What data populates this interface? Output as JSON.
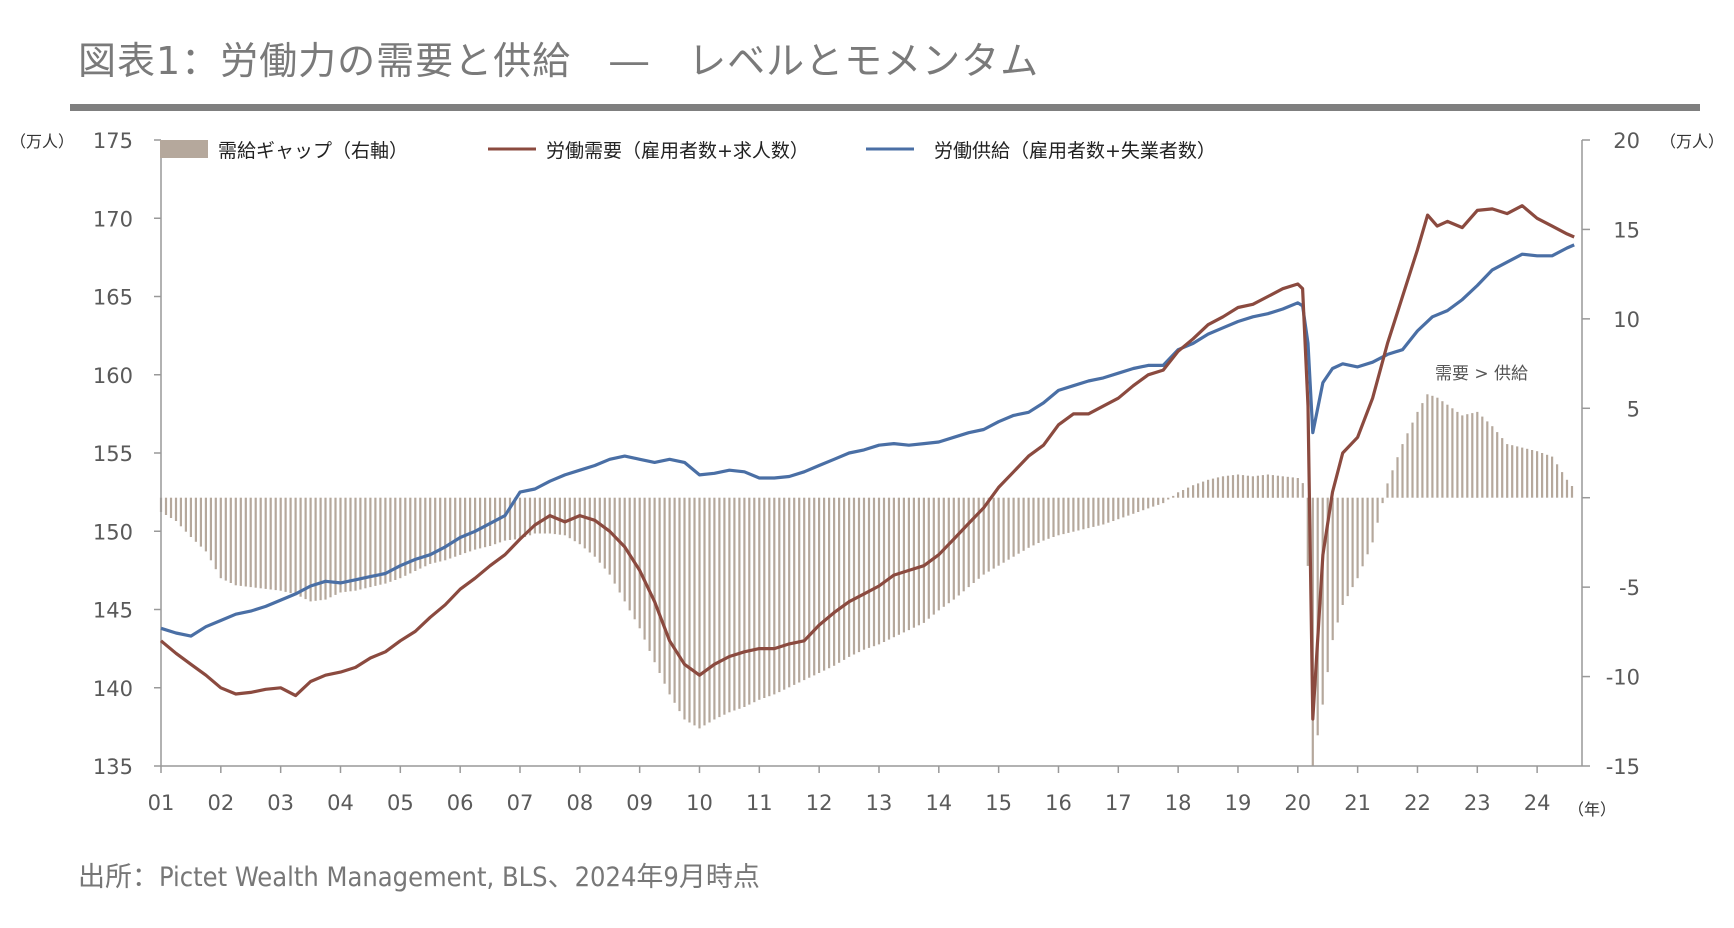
{
  "title": "図表1：労働力の需要と供給　―　レベルとモメンタム",
  "source": "出所：Pictet Wealth Management, BLS、2024年9月時点",
  "chart_data": {
    "type": "line",
    "left_axis": {
      "unit": "（万人）",
      "min": 135,
      "max": 175,
      "ticks": [
        135,
        140,
        145,
        150,
        155,
        160,
        165,
        170,
        175
      ]
    },
    "right_axis": {
      "unit": "（万人）",
      "min": -15,
      "max": 20,
      "ticks": [
        -15,
        -10,
        -5,
        0,
        5,
        10,
        15,
        20
      ],
      "tick_labels": [
        "-15",
        "-10",
        "-5",
        "",
        "5",
        "10",
        "15",
        "20"
      ]
    },
    "x_axis": {
      "unit": "（年）",
      "min": 2001,
      "max": 2024.75,
      "ticks": [
        "01",
        "02",
        "03",
        "04",
        "05",
        "06",
        "07",
        "08",
        "09",
        "10",
        "11",
        "12",
        "13",
        "14",
        "15",
        "16",
        "17",
        "18",
        "19",
        "20",
        "21",
        "22",
        "23",
        "24"
      ]
    },
    "legend": {
      "gap": "需給ギャップ（右軸）",
      "demand": "労働需要（雇用者数+求人数）",
      "supply": "労働供給（雇用者数+失業者数）"
    },
    "annotation": "需要 > 供給",
    "colors": {
      "gap": "#b5a89c",
      "demand": "#8b4a3f",
      "supply": "#4a6fa5",
      "axis": "#999999"
    },
    "demand_series": [
      [
        2001.0,
        143.0
      ],
      [
        2001.25,
        142.2
      ],
      [
        2001.5,
        141.5
      ],
      [
        2001.75,
        140.8
      ],
      [
        2002.0,
        140.0
      ],
      [
        2002.25,
        139.6
      ],
      [
        2002.5,
        139.7
      ],
      [
        2002.75,
        139.9
      ],
      [
        2003.0,
        140.0
      ],
      [
        2003.25,
        139.5
      ],
      [
        2003.5,
        140.4
      ],
      [
        2003.75,
        140.8
      ],
      [
        2004.0,
        141.0
      ],
      [
        2004.25,
        141.3
      ],
      [
        2004.5,
        141.9
      ],
      [
        2004.75,
        142.3
      ],
      [
        2005.0,
        143.0
      ],
      [
        2005.25,
        143.6
      ],
      [
        2005.5,
        144.5
      ],
      [
        2005.75,
        145.3
      ],
      [
        2006.0,
        146.3
      ],
      [
        2006.25,
        147.0
      ],
      [
        2006.5,
        147.8
      ],
      [
        2006.75,
        148.5
      ],
      [
        2007.0,
        149.5
      ],
      [
        2007.25,
        150.4
      ],
      [
        2007.5,
        151.0
      ],
      [
        2007.75,
        150.6
      ],
      [
        2008.0,
        151.0
      ],
      [
        2008.25,
        150.7
      ],
      [
        2008.5,
        150.0
      ],
      [
        2008.75,
        149.0
      ],
      [
        2009.0,
        147.5
      ],
      [
        2009.25,
        145.5
      ],
      [
        2009.5,
        143.0
      ],
      [
        2009.75,
        141.5
      ],
      [
        2010.0,
        140.8
      ],
      [
        2010.25,
        141.5
      ],
      [
        2010.5,
        142.0
      ],
      [
        2010.75,
        142.3
      ],
      [
        2011.0,
        142.5
      ],
      [
        2011.25,
        142.5
      ],
      [
        2011.5,
        142.8
      ],
      [
        2011.75,
        143.0
      ],
      [
        2012.0,
        144.0
      ],
      [
        2012.25,
        144.8
      ],
      [
        2012.5,
        145.5
      ],
      [
        2012.75,
        146.0
      ],
      [
        2013.0,
        146.5
      ],
      [
        2013.25,
        147.2
      ],
      [
        2013.5,
        147.5
      ],
      [
        2013.75,
        147.8
      ],
      [
        2014.0,
        148.5
      ],
      [
        2014.25,
        149.5
      ],
      [
        2014.5,
        150.5
      ],
      [
        2014.75,
        151.5
      ],
      [
        2015.0,
        152.8
      ],
      [
        2015.25,
        153.8
      ],
      [
        2015.5,
        154.8
      ],
      [
        2015.75,
        155.5
      ],
      [
        2016.0,
        156.8
      ],
      [
        2016.25,
        157.5
      ],
      [
        2016.5,
        157.5
      ],
      [
        2016.75,
        158.0
      ],
      [
        2017.0,
        158.5
      ],
      [
        2017.25,
        159.3
      ],
      [
        2017.5,
        160.0
      ],
      [
        2017.75,
        160.3
      ],
      [
        2018.0,
        161.5
      ],
      [
        2018.25,
        162.3
      ],
      [
        2018.5,
        163.2
      ],
      [
        2018.75,
        163.7
      ],
      [
        2019.0,
        164.3
      ],
      [
        2019.25,
        164.5
      ],
      [
        2019.5,
        165.0
      ],
      [
        2019.75,
        165.5
      ],
      [
        2020.0,
        165.8
      ],
      [
        2020.08,
        165.5
      ],
      [
        2020.17,
        158.0
      ],
      [
        2020.25,
        138.0
      ],
      [
        2020.42,
        148.5
      ],
      [
        2020.58,
        152.5
      ],
      [
        2020.75,
        155.0
      ],
      [
        2021.0,
        156.0
      ],
      [
        2021.25,
        158.5
      ],
      [
        2021.5,
        162.0
      ],
      [
        2021.75,
        165.0
      ],
      [
        2022.0,
        168.0
      ],
      [
        2022.17,
        170.2
      ],
      [
        2022.33,
        169.5
      ],
      [
        2022.5,
        169.8
      ],
      [
        2022.75,
        169.4
      ],
      [
        2023.0,
        170.5
      ],
      [
        2023.25,
        170.6
      ],
      [
        2023.5,
        170.3
      ],
      [
        2023.75,
        170.8
      ],
      [
        2024.0,
        170.0
      ],
      [
        2024.25,
        169.5
      ],
      [
        2024.5,
        169.0
      ],
      [
        2024.62,
        168.8
      ]
    ],
    "supply_series": [
      [
        2001.0,
        143.8
      ],
      [
        2001.25,
        143.5
      ],
      [
        2001.5,
        143.3
      ],
      [
        2001.75,
        143.9
      ],
      [
        2002.0,
        144.3
      ],
      [
        2002.25,
        144.7
      ],
      [
        2002.5,
        144.9
      ],
      [
        2002.75,
        145.2
      ],
      [
        2003.0,
        145.6
      ],
      [
        2003.25,
        146.0
      ],
      [
        2003.5,
        146.5
      ],
      [
        2003.75,
        146.8
      ],
      [
        2004.0,
        146.7
      ],
      [
        2004.25,
        146.9
      ],
      [
        2004.5,
        147.1
      ],
      [
        2004.75,
        147.3
      ],
      [
        2005.0,
        147.8
      ],
      [
        2005.25,
        148.2
      ],
      [
        2005.5,
        148.5
      ],
      [
        2005.75,
        149.0
      ],
      [
        2006.0,
        149.6
      ],
      [
        2006.25,
        150.0
      ],
      [
        2006.5,
        150.5
      ],
      [
        2006.75,
        151.0
      ],
      [
        2007.0,
        152.5
      ],
      [
        2007.25,
        152.7
      ],
      [
        2007.5,
        153.2
      ],
      [
        2007.75,
        153.6
      ],
      [
        2008.0,
        153.9
      ],
      [
        2008.25,
        154.2
      ],
      [
        2008.5,
        154.6
      ],
      [
        2008.75,
        154.8
      ],
      [
        2009.0,
        154.6
      ],
      [
        2009.25,
        154.4
      ],
      [
        2009.5,
        154.6
      ],
      [
        2009.75,
        154.4
      ],
      [
        2010.0,
        153.6
      ],
      [
        2010.25,
        153.7
      ],
      [
        2010.5,
        153.9
      ],
      [
        2010.75,
        153.8
      ],
      [
        2011.0,
        153.4
      ],
      [
        2011.25,
        153.4
      ],
      [
        2011.5,
        153.5
      ],
      [
        2011.75,
        153.8
      ],
      [
        2012.0,
        154.2
      ],
      [
        2012.25,
        154.6
      ],
      [
        2012.5,
        155.0
      ],
      [
        2012.75,
        155.2
      ],
      [
        2013.0,
        155.5
      ],
      [
        2013.25,
        155.6
      ],
      [
        2013.5,
        155.5
      ],
      [
        2013.75,
        155.6
      ],
      [
        2014.0,
        155.7
      ],
      [
        2014.25,
        156.0
      ],
      [
        2014.5,
        156.3
      ],
      [
        2014.75,
        156.5
      ],
      [
        2015.0,
        157.0
      ],
      [
        2015.25,
        157.4
      ],
      [
        2015.5,
        157.6
      ],
      [
        2015.75,
        158.2
      ],
      [
        2016.0,
        159.0
      ],
      [
        2016.25,
        159.3
      ],
      [
        2016.5,
        159.6
      ],
      [
        2016.75,
        159.8
      ],
      [
        2017.0,
        160.1
      ],
      [
        2017.25,
        160.4
      ],
      [
        2017.5,
        160.6
      ],
      [
        2017.75,
        160.6
      ],
      [
        2018.0,
        161.6
      ],
      [
        2018.25,
        162.0
      ],
      [
        2018.5,
        162.6
      ],
      [
        2018.75,
        163.0
      ],
      [
        2019.0,
        163.4
      ],
      [
        2019.25,
        163.7
      ],
      [
        2019.5,
        163.9
      ],
      [
        2019.75,
        164.2
      ],
      [
        2020.0,
        164.6
      ],
      [
        2020.08,
        164.4
      ],
      [
        2020.17,
        162.0
      ],
      [
        2020.25,
        156.3
      ],
      [
        2020.42,
        159.5
      ],
      [
        2020.58,
        160.4
      ],
      [
        2020.75,
        160.7
      ],
      [
        2021.0,
        160.5
      ],
      [
        2021.25,
        160.8
      ],
      [
        2021.5,
        161.3
      ],
      [
        2021.75,
        161.6
      ],
      [
        2022.0,
        162.8
      ],
      [
        2022.25,
        163.7
      ],
      [
        2022.5,
        164.1
      ],
      [
        2022.75,
        164.8
      ],
      [
        2023.0,
        165.7
      ],
      [
        2023.25,
        166.7
      ],
      [
        2023.5,
        167.2
      ],
      [
        2023.75,
        167.7
      ],
      [
        2024.0,
        167.6
      ],
      [
        2024.25,
        167.6
      ],
      [
        2024.5,
        168.1
      ],
      [
        2024.62,
        168.3
      ]
    ],
    "gap_series": [
      [
        2001.0,
        -0.8
      ],
      [
        2001.25,
        -1.3
      ],
      [
        2001.5,
        -2.2
      ],
      [
        2001.75,
        -3.0
      ],
      [
        2002.0,
        -4.5
      ],
      [
        2002.25,
        -4.9
      ],
      [
        2002.5,
        -5.0
      ],
      [
        2002.75,
        -5.1
      ],
      [
        2003.0,
        -5.2
      ],
      [
        2003.25,
        -5.4
      ],
      [
        2003.5,
        -5.8
      ],
      [
        2003.75,
        -5.7
      ],
      [
        2004.0,
        -5.3
      ],
      [
        2004.25,
        -5.2
      ],
      [
        2004.5,
        -5.0
      ],
      [
        2004.75,
        -4.8
      ],
      [
        2005.0,
        -4.5
      ],
      [
        2005.25,
        -4.1
      ],
      [
        2005.5,
        -3.7
      ],
      [
        2005.75,
        -3.5
      ],
      [
        2006.0,
        -3.2
      ],
      [
        2006.25,
        -2.9
      ],
      [
        2006.5,
        -2.7
      ],
      [
        2006.75,
        -2.4
      ],
      [
        2007.0,
        -2.3
      ],
      [
        2007.25,
        -2.0
      ],
      [
        2007.5,
        -2.0
      ],
      [
        2007.75,
        -2.1
      ],
      [
        2008.0,
        -2.6
      ],
      [
        2008.25,
        -3.3
      ],
      [
        2008.5,
        -4.3
      ],
      [
        2008.75,
        -5.8
      ],
      [
        2009.0,
        -7.3
      ],
      [
        2009.25,
        -9.2
      ],
      [
        2009.5,
        -11.0
      ],
      [
        2009.75,
        -12.4
      ],
      [
        2010.0,
        -12.9
      ],
      [
        2010.25,
        -12.4
      ],
      [
        2010.5,
        -12.0
      ],
      [
        2010.75,
        -11.7
      ],
      [
        2011.0,
        -11.3
      ],
      [
        2011.25,
        -11.0
      ],
      [
        2011.5,
        -10.6
      ],
      [
        2011.75,
        -10.2
      ],
      [
        2012.0,
        -9.8
      ],
      [
        2012.25,
        -9.4
      ],
      [
        2012.5,
        -8.9
      ],
      [
        2012.75,
        -8.5
      ],
      [
        2013.0,
        -8.2
      ],
      [
        2013.25,
        -7.8
      ],
      [
        2013.5,
        -7.4
      ],
      [
        2013.75,
        -7.0
      ],
      [
        2014.0,
        -6.3
      ],
      [
        2014.25,
        -5.7
      ],
      [
        2014.5,
        -5.0
      ],
      [
        2014.75,
        -4.3
      ],
      [
        2015.0,
        -3.8
      ],
      [
        2015.25,
        -3.3
      ],
      [
        2015.5,
        -2.8
      ],
      [
        2015.75,
        -2.4
      ],
      [
        2016.0,
        -2.1
      ],
      [
        2016.25,
        -1.9
      ],
      [
        2016.5,
        -1.7
      ],
      [
        2016.75,
        -1.5
      ],
      [
        2017.0,
        -1.2
      ],
      [
        2017.25,
        -0.9
      ],
      [
        2017.5,
        -0.6
      ],
      [
        2017.75,
        -0.3
      ],
      [
        2018.0,
        0.3
      ],
      [
        2018.25,
        0.7
      ],
      [
        2018.5,
        1.0
      ],
      [
        2018.75,
        1.2
      ],
      [
        2019.0,
        1.3
      ],
      [
        2019.25,
        1.2
      ],
      [
        2019.5,
        1.3
      ],
      [
        2019.75,
        1.2
      ],
      [
        2020.0,
        1.1
      ],
      [
        2020.08,
        1.0
      ],
      [
        2020.17,
        -4.0
      ],
      [
        2020.25,
        -15.0
      ],
      [
        2020.42,
        -11.5
      ],
      [
        2020.58,
        -8.0
      ],
      [
        2020.75,
        -6.0
      ],
      [
        2021.0,
        -4.5
      ],
      [
        2021.25,
        -2.5
      ],
      [
        2021.5,
        0.8
      ],
      [
        2021.75,
        3.0
      ],
      [
        2022.0,
        4.8
      ],
      [
        2022.17,
        5.8
      ],
      [
        2022.33,
        5.6
      ],
      [
        2022.5,
        5.2
      ],
      [
        2022.75,
        4.6
      ],
      [
        2023.0,
        4.8
      ],
      [
        2023.25,
        4.0
      ],
      [
        2023.5,
        3.0
      ],
      [
        2023.75,
        2.8
      ],
      [
        2024.0,
        2.6
      ],
      [
        2024.25,
        2.3
      ],
      [
        2024.5,
        1.0
      ],
      [
        2024.62,
        0.5
      ]
    ]
  }
}
